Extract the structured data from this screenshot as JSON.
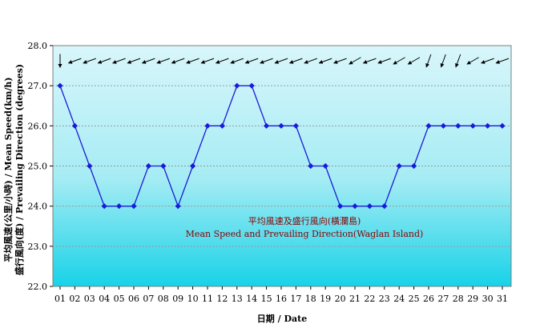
{
  "chart_data": {
    "type": "line",
    "title": "",
    "annotation_zh": "平均風速及盛行風向(橫瀾島)",
    "annotation_en": "Mean Speed and Prevailing Direction(Waglan Island)",
    "xlabel": "日期 / Date",
    "ylabel_line1": "平均風速(公里/小時) / Mean Speed(km/h)",
    "ylabel_line2": "盛行風向(度) / Prevailing Direction (degrees)",
    "ylim": [
      22.0,
      28.0
    ],
    "yticks": [
      "22.0",
      "23.0",
      "24.0",
      "25.0",
      "26.0",
      "27.0",
      "28.0"
    ],
    "categories": [
      "01",
      "02",
      "03",
      "04",
      "05",
      "06",
      "07",
      "08",
      "09",
      "10",
      "11",
      "12",
      "13",
      "14",
      "15",
      "16",
      "17",
      "18",
      "19",
      "20",
      "21",
      "22",
      "23",
      "24",
      "25",
      "26",
      "27",
      "28",
      "29",
      "30",
      "31"
    ],
    "series": [
      {
        "values": [
          27.0,
          26.0,
          25.0,
          24.0,
          24.0,
          24.0,
          25.0,
          25.0,
          24.0,
          25.0,
          26.0,
          26.0,
          27.0,
          27.0,
          26.0,
          26.0,
          26.0,
          25.0,
          25.0,
          24.0,
          24.0,
          24.0,
          24.0,
          25.0,
          25.0,
          26.0,
          26.0,
          26.0,
          26.0,
          26.0,
          26.0
        ],
        "color": "#1a1adb"
      }
    ],
    "direction_arrows_deg": [
      360,
      70,
      70,
      70,
      70,
      70,
      70,
      70,
      70,
      70,
      70,
      70,
      70,
      70,
      70,
      70,
      70,
      70,
      70,
      70,
      60,
      70,
      70,
      60,
      60,
      20,
      20,
      20,
      60,
      70,
      70
    ],
    "grid": true,
    "background_top": "#d8f6fb",
    "background_bottom": "#18d2e8"
  }
}
